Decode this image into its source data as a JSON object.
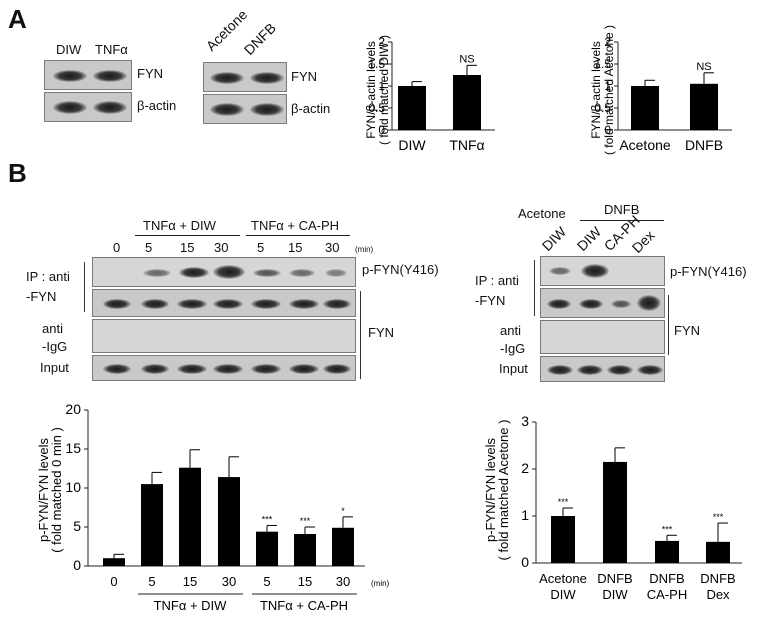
{
  "panel_a": {
    "letter": "A",
    "blot1": {
      "lanes": [
        "DIW",
        "TNFα"
      ],
      "rows": [
        "FYN",
        "β-actin"
      ]
    },
    "blot2": {
      "lanes": [
        "Acetone",
        "DNFB"
      ],
      "rows": [
        "FYN",
        "β-actin"
      ]
    }
  },
  "panel_b": {
    "letter": "B",
    "blot_left": {
      "groups": [
        "TNFα + DIW",
        "TNFα + CA-PH"
      ],
      "times": [
        "0",
        "5",
        "15",
        "30",
        "5",
        "15",
        "30"
      ],
      "unit": "(min)",
      "row_labels": {
        "ip": "IP : anti\n-FYN",
        "igg": "anti\n-IgG",
        "input": "Input"
      },
      "right_labels": {
        "pfyn": "p-FYN(Y416)",
        "fyn": "FYN"
      }
    },
    "blot_right": {
      "header": "DNFB",
      "first_lane": "Acetone",
      "lanes": [
        "DIW",
        "DIW",
        "CA-PH",
        "Dex"
      ],
      "row_labels": {
        "ip": "IP : anti\n-FYN",
        "igg": "anti\n-IgG",
        "input": "Input"
      },
      "right_labels": {
        "pfyn": "p-FYN(Y416)",
        "fyn": "FYN"
      }
    }
  },
  "chart_data": [
    {
      "type": "bar",
      "ylabel": "FYN/β-actin levels\n( fold matched DIW )",
      "categories": [
        "DIW",
        "TNFα"
      ],
      "values": [
        1.0,
        1.25
      ],
      "errors": [
        0.1,
        0.22
      ],
      "annotations": [
        "",
        "NS"
      ],
      "ylim": [
        0,
        2
      ],
      "yticks": [
        "0",
        "0.5",
        "1",
        "1.5",
        "2"
      ]
    },
    {
      "type": "bar",
      "ylabel": "FYN/β-actin levels\n( fold matched Acetone )",
      "categories": [
        "Acetone",
        "DNFB"
      ],
      "values": [
        1.0,
        1.05
      ],
      "errors": [
        0.13,
        0.25
      ],
      "annotations": [
        "",
        "NS"
      ],
      "ylim": [
        0,
        2
      ],
      "yticks": [
        "0",
        "0.5",
        "1",
        "1.5",
        "2"
      ]
    },
    {
      "type": "bar",
      "ylabel": "p-FYN/FYN levels\n( fold matched 0 min )",
      "categories": [
        "0",
        "5",
        "15",
        "30",
        "5",
        "15",
        "30"
      ],
      "values": [
        1.0,
        10.5,
        12.6,
        11.4,
        4.4,
        4.1,
        4.9
      ],
      "errors": [
        0.5,
        1.5,
        2.3,
        2.6,
        0.8,
        0.9,
        1.4
      ],
      "annotations": [
        "",
        "",
        "",
        "",
        "***",
        "***",
        "*"
      ],
      "groups": [
        "TNFα + DIW",
        "TNFα + CA-PH"
      ],
      "unit": "(min)",
      "ylim": [
        0,
        20
      ],
      "yticks": [
        "0",
        "5",
        "10",
        "15",
        "20"
      ]
    },
    {
      "type": "bar",
      "ylabel": "p-FYN/FYN levels\n( fold matched Acetone )",
      "categories": [
        "Acetone\nDIW",
        "DNFB\nDIW",
        "DNFB\nCA-PH",
        "DNFB\nDex"
      ],
      "values": [
        1.0,
        2.15,
        0.47,
        0.45
      ],
      "errors": [
        0.17,
        0.3,
        0.12,
        0.4
      ],
      "annotations": [
        "***",
        "",
        "***",
        "***"
      ],
      "ylim": [
        0,
        3
      ],
      "yticks": [
        "0",
        "1",
        "2",
        "3"
      ]
    }
  ]
}
